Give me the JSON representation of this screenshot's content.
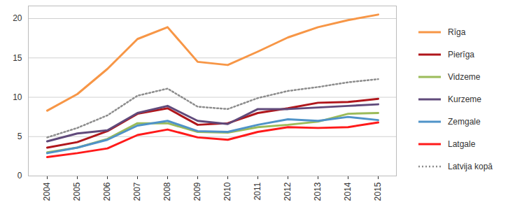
{
  "chart_data": {
    "type": "line",
    "x": [
      "2004",
      "2005",
      "2006",
      "2007",
      "2008",
      "2009",
      "2010",
      "2011",
      "2012",
      "2013",
      "2014",
      "2015"
    ],
    "series": [
      {
        "name": "Rīga",
        "color": "#f79646",
        "line_style": "solid",
        "values": [
          8.3,
          10.4,
          13.6,
          17.4,
          18.9,
          14.5,
          14.1,
          15.8,
          17.6,
          18.9,
          19.8,
          20.5
        ]
      },
      {
        "name": "Pierīga",
        "color": "#b0161b",
        "line_style": "solid",
        "values": [
          3.6,
          4.3,
          5.7,
          7.9,
          8.6,
          6.5,
          6.7,
          8.0,
          8.6,
          9.3,
          9.4,
          9.8
        ]
      },
      {
        "name": "Vidzeme",
        "color": "#9bbb59",
        "line_style": "solid",
        "values": [
          3.0,
          3.6,
          4.7,
          6.7,
          6.7,
          5.6,
          5.5,
          6.2,
          6.5,
          6.9,
          7.9,
          8.0
        ]
      },
      {
        "name": "Kurzeme",
        "color": "#604a7b",
        "line_style": "solid",
        "values": [
          4.4,
          5.4,
          5.8,
          8.0,
          8.9,
          7.0,
          6.6,
          8.5,
          8.5,
          8.7,
          8.9,
          9.1
        ]
      },
      {
        "name": "Zemgale",
        "color": "#4f93c8",
        "line_style": "solid",
        "values": [
          2.9,
          3.6,
          4.6,
          6.4,
          7.0,
          5.7,
          5.6,
          6.5,
          7.2,
          7.0,
          7.5,
          7.1
        ]
      },
      {
        "name": "Latgale",
        "color": "#ff1a1a",
        "line_style": "solid",
        "values": [
          2.4,
          2.9,
          3.5,
          5.2,
          5.9,
          4.9,
          4.6,
          5.6,
          6.2,
          6.1,
          6.2,
          6.8
        ]
      },
      {
        "name": "Latvija kopā",
        "color": "#8c8c8c",
        "line_style": "dotted",
        "values": [
          4.9,
          6.1,
          7.7,
          10.2,
          11.1,
          8.8,
          8.5,
          9.9,
          10.8,
          11.3,
          11.9,
          12.3
        ]
      }
    ],
    "ylim": [
      0,
      21.6
    ],
    "yticks": [
      0,
      5,
      10,
      15,
      20
    ],
    "grid": true,
    "legend": "right"
  }
}
